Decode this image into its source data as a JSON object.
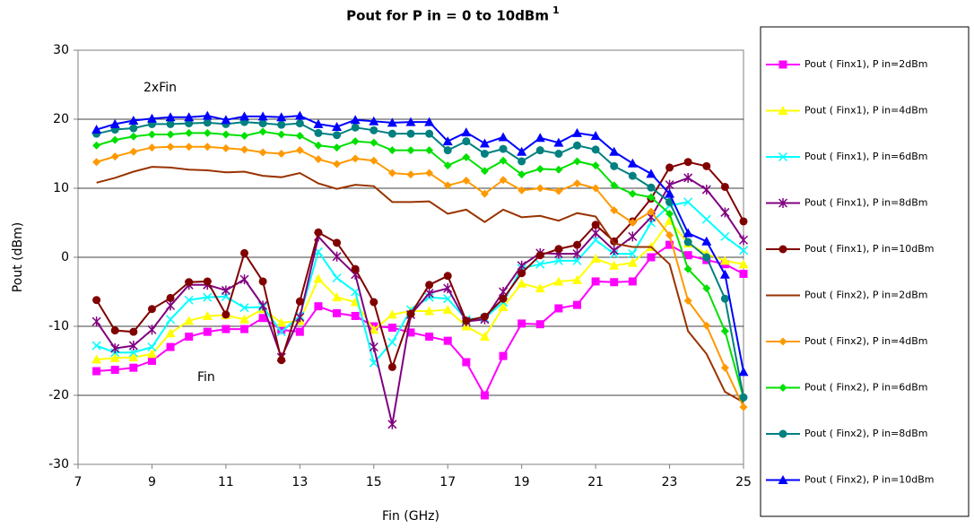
{
  "chart_data": {
    "type": "line",
    "title": "Pout for P in = 0 to 10dBm",
    "title_superscript": "1",
    "x_label": "Fin (GHz)",
    "y_label": "Pout (dBm)",
    "annotations": [
      "2xFin",
      "Fin"
    ],
    "x": [
      7.5,
      8,
      8.5,
      9,
      9.5,
      10,
      10.5,
      11,
      11.5,
      12,
      12.5,
      13,
      13.5,
      14,
      14.5,
      15,
      15.5,
      16,
      16.5,
      17,
      17.5,
      18,
      18.5,
      19,
      19.5,
      20,
      20.5,
      21,
      21.5,
      22,
      22.5,
      23,
      23.5,
      24,
      24.5,
      25
    ],
    "xlim": [
      7,
      25
    ],
    "xticks": [
      7,
      9,
      11,
      13,
      15,
      17,
      19,
      21,
      23,
      25
    ],
    "ylim": [
      -30,
      30
    ],
    "yticks": [
      -30,
      -20,
      -10,
      0,
      10,
      20,
      30
    ],
    "grid": true,
    "legend": "right",
    "series": [
      {
        "name": "Pout ( Finx1), P in=2dBm",
        "color": "#ff00ff",
        "marker": "square",
        "values": [
          -16.5,
          -16.3,
          -16,
          -15,
          -13,
          -11.5,
          -10.8,
          -10.4,
          -10.4,
          -8.8,
          -10.5,
          -10.8,
          -7.1,
          -8.1,
          -8.5,
          -10,
          -10.2,
          -10.9,
          -11.5,
          -12.1,
          -15.2,
          -20,
          -14.3,
          -9.6,
          -9.7,
          -7.4,
          -6.9,
          -3.5,
          -3.6,
          -3.5,
          0,
          1.8,
          0.3,
          -0.4,
          -1,
          -2.4
        ]
      },
      {
        "name": "Pout ( Finx1), P in=4dBm",
        "color": "#ffff00",
        "marker": "triangle",
        "values": [
          -14.8,
          -14.6,
          -14.5,
          -14,
          -11,
          -9.2,
          -8.5,
          -8.4,
          -9,
          -7.5,
          -9.5,
          -9.2,
          -3.1,
          -5.8,
          -6.5,
          -10.5,
          -8.3,
          -7.8,
          -7.8,
          -7.6,
          -10,
          -11.5,
          -7.2,
          -3.8,
          -4.5,
          -3.5,
          -3.3,
          -0.2,
          -1.2,
          -0.8,
          1.5,
          5.3,
          2,
          0.5,
          -0.5,
          -1
        ]
      },
      {
        "name": "Pout ( Finx1), P in=6dBm",
        "color": "#00ffff",
        "marker": "x",
        "values": [
          -12.8,
          -13.8,
          -13.8,
          -13,
          -9,
          -6.2,
          -5.8,
          -5.7,
          -7.3,
          -7.2,
          -10.8,
          -8.5,
          0.8,
          -3,
          -5,
          -15.3,
          -12.3,
          -7.6,
          -5.8,
          -6,
          -9,
          -8.8,
          -6.5,
          -1.6,
          -1,
          -0.5,
          -0.5,
          2.5,
          0.5,
          0.5,
          5,
          7.5,
          8,
          5.5,
          3,
          1
        ]
      },
      {
        "name": "Pout ( Finx1), P in=8dBm",
        "color": "#800080",
        "marker": "star",
        "values": [
          -9.3,
          -13.2,
          -12.8,
          -10.5,
          -7,
          -4,
          -4,
          -4.8,
          -3.2,
          -7,
          -14.5,
          -8.7,
          3,
          0.1,
          -2.5,
          -13,
          -24.2,
          -8.3,
          -5.2,
          -4.5,
          -9.3,
          -9,
          -5,
          -1.2,
          0.6,
          0.5,
          0.5,
          3.5,
          1,
          3,
          5.8,
          10.5,
          11.5,
          9.8,
          6.5,
          2.5
        ]
      },
      {
        "name": "Pout ( Finx1), P in=10dBm",
        "color": "#800000",
        "marker": "circle",
        "values": [
          -6.2,
          -10.6,
          -10.8,
          -7.5,
          -5.9,
          -3.6,
          -3.5,
          -8.3,
          0.6,
          -3.5,
          -14.9,
          -6.4,
          3.6,
          2.1,
          -1.7,
          -6.5,
          -15.9,
          -8.2,
          -4,
          -2.7,
          -9.2,
          -8.6,
          -6,
          -2.3,
          0.3,
          1.2,
          1.8,
          4.7,
          2.3,
          5.2,
          8.5,
          13,
          13.8,
          13.2,
          10.2,
          5.2
        ]
      },
      {
        "name": "Pout ( Finx2), P in=2dBm",
        "color": "#993300",
        "marker": "none",
        "values": [
          10.8,
          11.5,
          12.4,
          13.1,
          13,
          12.7,
          12.6,
          12.3,
          12.4,
          11.8,
          11.6,
          12.2,
          10.7,
          9.9,
          10.5,
          10.3,
          8,
          8,
          8.1,
          6.3,
          6.9,
          5.1,
          6.9,
          5.8,
          6,
          5.3,
          6.4,
          5.9,
          2,
          1.5,
          1.5,
          -1,
          -10.7,
          -14,
          -19.5,
          -21
        ]
      },
      {
        "name": "Pout ( Finx2), P in=4dBm",
        "color": "#ff9900",
        "marker": "diamond",
        "values": [
          13.8,
          14.6,
          15.3,
          15.9,
          16,
          16,
          16,
          15.8,
          15.6,
          15.2,
          15,
          15.5,
          14.2,
          13.5,
          14.3,
          14,
          12.2,
          12,
          12.2,
          10.4,
          11.1,
          9.2,
          11.2,
          9.7,
          10,
          9.6,
          10.7,
          10,
          6.8,
          5,
          6.6,
          3.2,
          -6.3,
          -9.9,
          -16,
          -21.7
        ]
      },
      {
        "name": "Pout ( Finx2), P in=6dBm",
        "color": "#00e000",
        "marker": "diamond",
        "values": [
          16.2,
          17,
          17.5,
          17.8,
          17.8,
          18,
          18,
          17.8,
          17.6,
          18.2,
          17.8,
          17.6,
          16.2,
          15.9,
          16.8,
          16.6,
          15.5,
          15.5,
          15.5,
          13.3,
          14.5,
          12.5,
          14,
          12,
          12.8,
          12.7,
          13.9,
          13.3,
          10.4,
          9.2,
          8.7,
          6.3,
          -1.7,
          -4.5,
          -10.7,
          -20.4
        ]
      },
      {
        "name": "Pout ( Finx2), P in=8dBm",
        "color": "#008080",
        "marker": "circle",
        "values": [
          17.9,
          18.5,
          18.7,
          19.3,
          19.3,
          19.4,
          19.5,
          19.3,
          19.6,
          19.4,
          19.2,
          19.4,
          18,
          17.7,
          18.8,
          18.4,
          17.9,
          17.9,
          17.9,
          15.5,
          16.8,
          15,
          15.7,
          13.9,
          15.5,
          15,
          16.2,
          15.6,
          13.2,
          11.8,
          10.1,
          8,
          2.2,
          0,
          -6,
          -20.3
        ]
      },
      {
        "name": "Pout ( Finx2), P in=10dBm",
        "color": "#0000ff",
        "marker": "triangle",
        "values": [
          18.5,
          19.3,
          19.8,
          20.1,
          20.3,
          20.3,
          20.5,
          19.9,
          20.4,
          20.4,
          20.3,
          20.5,
          19.3,
          18.9,
          19.9,
          19.7,
          19.5,
          19.6,
          19.6,
          16.8,
          18.1,
          16.5,
          17.4,
          15.3,
          17.3,
          16.6,
          18,
          17.6,
          15.3,
          13.6,
          12.1,
          9.2,
          3.5,
          2.3,
          -2.5,
          -16.6
        ]
      }
    ]
  }
}
